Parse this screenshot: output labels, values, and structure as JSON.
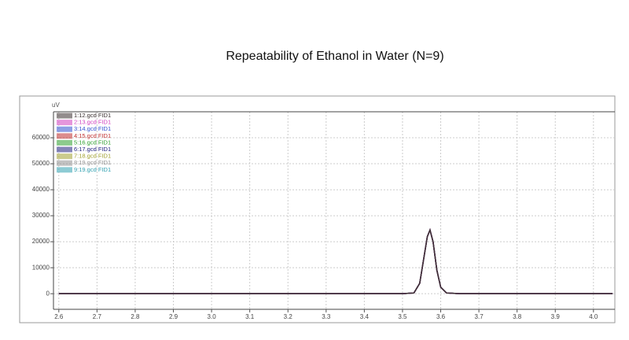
{
  "chart_data": {
    "type": "line",
    "title": "Repeatability of Ethanol in Water (N=9)",
    "y_label": "uV",
    "x": [
      2.6,
      3.0,
      3.5,
      3.53,
      3.545,
      3.555,
      3.565,
      3.572,
      3.58,
      3.59,
      3.6,
      3.615,
      3.65,
      4.05
    ],
    "series": [
      {
        "name": "1:12.gcd FID1",
        "color": "#3a3030",
        "values": [
          0,
          0,
          0,
          300,
          4000,
          13000,
          22000,
          24500,
          20000,
          9000,
          2500,
          300,
          0,
          0
        ]
      },
      {
        "name": "2:13.gcd FID1",
        "color": "#d040c0",
        "values": [
          0,
          0,
          0,
          300,
          4000,
          13000,
          22000,
          24500,
          20000,
          9000,
          2500,
          300,
          0,
          0
        ]
      },
      {
        "name": "3:14.gcd FID1",
        "color": "#3050d0",
        "values": [
          0,
          0,
          0,
          300,
          4000,
          13000,
          22000,
          24500,
          20000,
          9000,
          2500,
          300,
          0,
          0
        ]
      },
      {
        "name": "4:15.gcd FID1",
        "color": "#c03030",
        "values": [
          0,
          0,
          0,
          300,
          4000,
          13000,
          22000,
          24500,
          20000,
          9000,
          2500,
          300,
          0,
          0
        ]
      },
      {
        "name": "5:16.gcd FID1",
        "color": "#30a030",
        "values": [
          0,
          0,
          0,
          300,
          4000,
          13000,
          22000,
          24500,
          20000,
          9000,
          2500,
          300,
          0,
          0
        ]
      },
      {
        "name": "6:17.gcd FID1",
        "color": "#202080",
        "values": [
          0,
          0,
          0,
          300,
          4000,
          13000,
          22000,
          24500,
          20000,
          9000,
          2500,
          300,
          0,
          0
        ]
      },
      {
        "name": "7:18.gcd FID1",
        "color": "#a0a030",
        "values": [
          0,
          0,
          0,
          300,
          4000,
          13000,
          22000,
          24500,
          20000,
          9000,
          2500,
          300,
          0,
          0
        ]
      },
      {
        "name": "8:19.gcd FID1",
        "color": "#909090",
        "values": [
          0,
          0,
          0,
          300,
          4000,
          13000,
          22000,
          24500,
          20000,
          9000,
          2500,
          300,
          0,
          0
        ]
      },
      {
        "name": "9:19.gcd FID1",
        "color": "#30a0b0",
        "values": [
          0,
          0,
          0,
          300,
          4000,
          13000,
          22000,
          24500,
          20000,
          9000,
          2500,
          300,
          0,
          0
        ]
      }
    ],
    "xlim": [
      2.586,
      4.056
    ],
    "xticks": [
      2.6,
      2.7,
      2.8,
      2.9,
      {
        "value": 3,
        "label": "3.0"
      },
      3.1,
      3.2,
      3.3,
      3.4,
      3.5,
      3.6,
      3.7,
      3.8,
      3.9,
      {
        "value": 4,
        "label": "4.0"
      }
    ],
    "ylim": [
      -6000,
      70000
    ],
    "yticks": [
      0,
      10000,
      20000,
      30000,
      40000,
      50000,
      60000
    ],
    "grid": true,
    "legend": "top-left"
  }
}
